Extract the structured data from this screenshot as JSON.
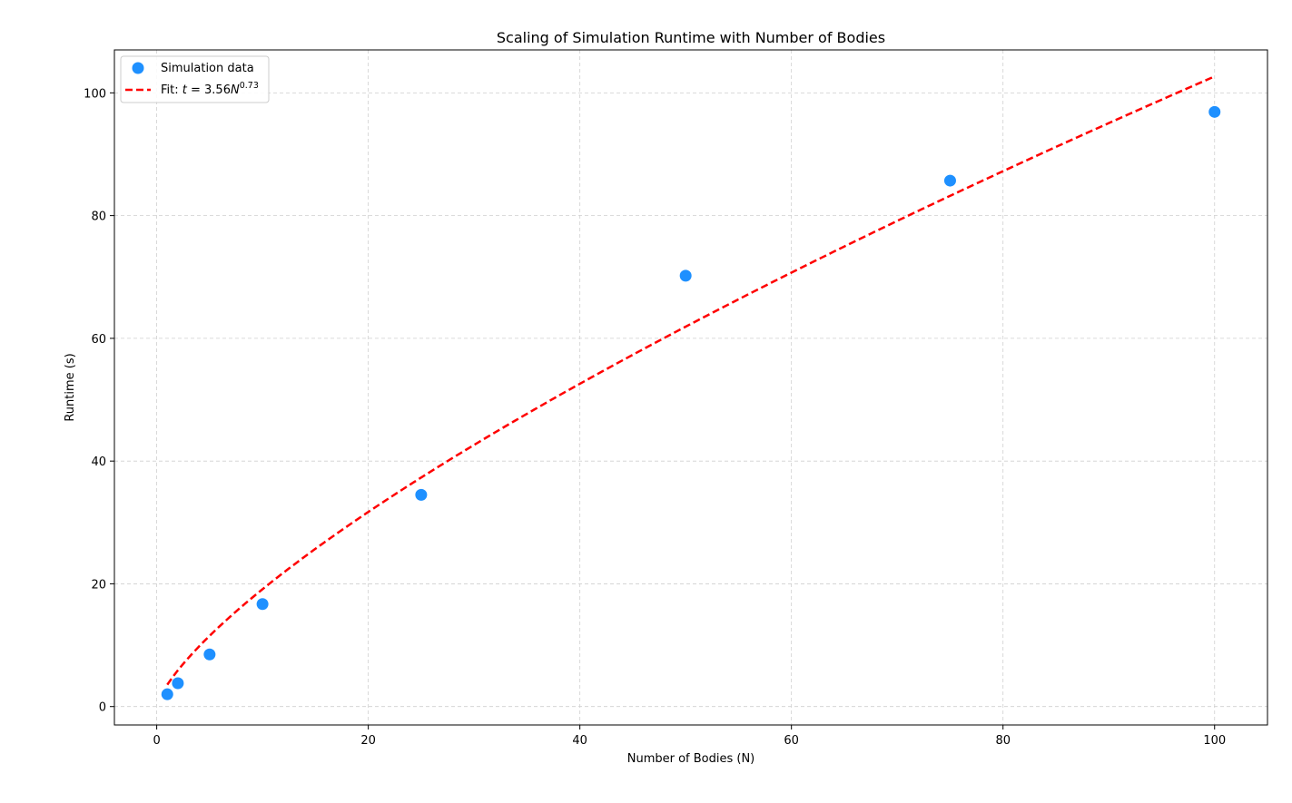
{
  "chart_data": {
    "type": "scatter",
    "title": "Scaling of Simulation Runtime with Number of Bodies",
    "xlabel": "Number of Bodies (N)",
    "ylabel": "Runtime (s)",
    "xlim": [
      -4,
      105
    ],
    "ylim": [
      -3,
      107
    ],
    "xticks": [
      0,
      20,
      40,
      60,
      80,
      100
    ],
    "yticks": [
      0,
      20,
      40,
      60,
      80,
      100
    ],
    "grid": true,
    "legend_position": "top-left",
    "series": [
      {
        "name": "Simulation data",
        "kind": "scatter",
        "color": "#1e90ff",
        "x": [
          1,
          2,
          5,
          10,
          25,
          50,
          75,
          100
        ],
        "y": [
          2.0,
          3.8,
          8.5,
          16.7,
          34.5,
          70.2,
          85.7,
          96.9
        ]
      },
      {
        "name": "Fit: t = 3.56N^0.73",
        "kind": "line",
        "style": "dashed",
        "color": "#ff0000",
        "fit": {
          "a": 3.56,
          "b": 0.73,
          "x_start": 1,
          "x_end": 100
        }
      }
    ],
    "legend": {
      "scatter_label": "Simulation data",
      "fit_prefix": "Fit: ",
      "fit_t": "t",
      "fit_eq": " = 3.56",
      "fit_N": "N",
      "fit_exp": "0.73"
    }
  }
}
